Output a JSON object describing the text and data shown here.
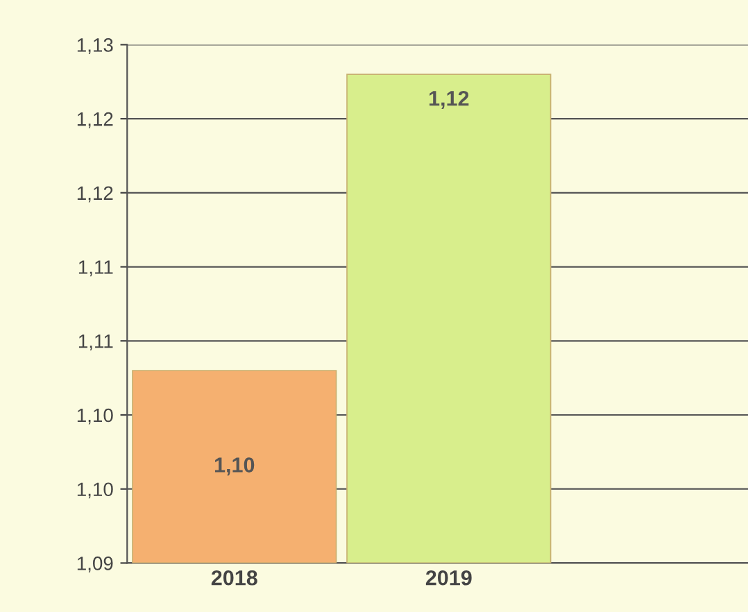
{
  "chart_data": {
    "type": "bar",
    "categories": [
      "2018",
      "2019"
    ],
    "values": [
      1.103,
      1.123
    ],
    "colors": [
      "#f5b070",
      "#d8ee8c"
    ],
    "value_labels": [
      "1,10",
      "1,12"
    ],
    "ylim": [
      1.09,
      1.125
    ],
    "yticks": [
      {
        "value": 1.09,
        "label": "1,09"
      },
      {
        "value": 1.095,
        "label": "1,10"
      },
      {
        "value": 1.1,
        "label": "1,10"
      },
      {
        "value": 1.105,
        "label": "1,11"
      },
      {
        "value": 1.11,
        "label": "1,11"
      },
      {
        "value": 1.115,
        "label": "1,12"
      },
      {
        "value": 1.12,
        "label": "1,12"
      },
      {
        "value": 1.125,
        "label": "1,13"
      }
    ],
    "grid": "y"
  }
}
